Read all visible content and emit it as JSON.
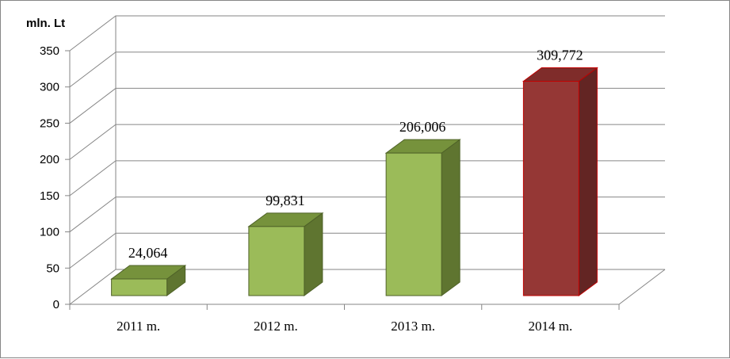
{
  "chart_data": {
    "type": "bar",
    "ylabel": "mln. Lt",
    "categories": [
      "2011 m.",
      "2012 m.",
      "2013 m.",
      "2014 m."
    ],
    "values": [
      24.064,
      99.831,
      206.006,
      309.772
    ],
    "data_labels": [
      "24,064",
      "99,831",
      "206,006",
      "309,772"
    ],
    "ylim": [
      0,
      350
    ],
    "yticks": [
      "0",
      "50",
      "100",
      "150",
      "200",
      "250",
      "300",
      "350"
    ],
    "grid": true,
    "style": "3d-column",
    "colors": {
      "front": [
        "#9bbb59",
        "#9bbb59",
        "#9bbb59",
        "#953735"
      ],
      "top": [
        "#76923c",
        "#76923c",
        "#76923c",
        "#7f2c2a"
      ],
      "side": [
        "#5f7530",
        "#5f7530",
        "#5f7530",
        "#632523"
      ],
      "stroke": [
        "#4f6228",
        "#4f6228",
        "#4f6228",
        "#c00000"
      ]
    }
  }
}
